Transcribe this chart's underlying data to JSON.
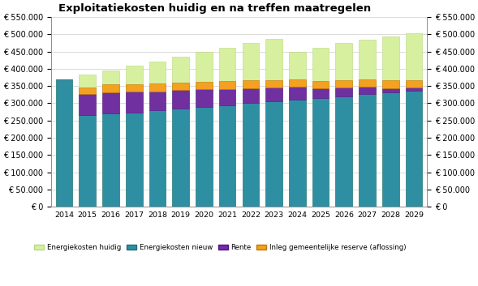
{
  "years": [
    2014,
    2015,
    2016,
    2017,
    2018,
    2019,
    2020,
    2021,
    2022,
    2023,
    2024,
    2025,
    2026,
    2027,
    2028,
    2029
  ],
  "energiekosten_huidig": [
    370000,
    383000,
    396000,
    409000,
    422000,
    435000,
    448000,
    461000,
    474000,
    487000,
    450000,
    462000,
    474000,
    484000,
    494000,
    504000
  ],
  "energiekosten_nieuw": [
    370000,
    265000,
    270000,
    272000,
    280000,
    285000,
    290000,
    295000,
    300000,
    305000,
    310000,
    315000,
    320000,
    327000,
    332000,
    337000
  ],
  "rente": [
    0,
    63000,
    62000,
    61000,
    55000,
    53000,
    50000,
    47000,
    44000,
    41000,
    38000,
    28000,
    25000,
    20000,
    12000,
    8000
  ],
  "inleg": [
    0,
    18000,
    22000,
    22000,
    22000,
    22000,
    22000,
    22000,
    22000,
    22000,
    22000,
    22000,
    22000,
    22000,
    22000,
    22000
  ],
  "color_huidig": "#d6f0a0",
  "color_nieuw": "#2e8fa3",
  "color_rente": "#7030a0",
  "color_inleg": "#f4a020",
  "title": "Exploitatiekosten huidig en na treffen maatregelen",
  "ylim": [
    0,
    550000
  ],
  "yticks": [
    0,
    50000,
    100000,
    150000,
    200000,
    250000,
    300000,
    350000,
    400000,
    450000,
    500000,
    550000
  ],
  "legend_labels": [
    "Energiekosten huidig",
    "Energiekosten nieuw",
    "Rente",
    "Inleg gemeentelijke reserve (aflossing)"
  ],
  "bg_color": "#ffffff",
  "grid_color": "#cccccc",
  "bar_width": 0.72
}
